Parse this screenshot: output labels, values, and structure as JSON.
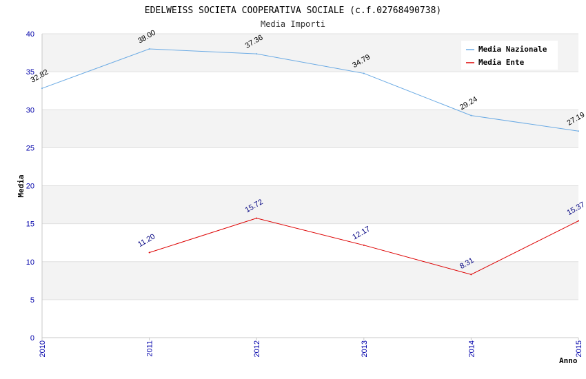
{
  "chart_data": {
    "type": "line",
    "title": "EDELWEISS SOCIETA COOPERATIVA SOCIALE (c.f.02768490738)",
    "subtitle": "Media Importi",
    "xlabel": "Anno",
    "ylabel": "Media",
    "x": [
      "2010",
      "2011",
      "2012",
      "2013",
      "2014",
      "2015"
    ],
    "ylim": [
      0,
      40
    ],
    "yticks": [
      "0",
      "5",
      "10",
      "15",
      "20",
      "25",
      "30",
      "35",
      "40"
    ],
    "grid": true,
    "legend_position": "top-right",
    "series": [
      {
        "name": "Media Nazionale",
        "color": "#6aaae4",
        "label_color": "#000000",
        "values": [
          32.82,
          38.0,
          37.36,
          34.79,
          29.24,
          27.19
        ],
        "labels": [
          "32.82",
          "38.00",
          "37.36",
          "34.79",
          "29.24",
          "27.19"
        ]
      },
      {
        "name": "Media Ente",
        "color": "#dd0000",
        "label_color": "#000080",
        "values": [
          null,
          11.2,
          15.72,
          12.17,
          8.31,
          15.37
        ],
        "labels": [
          null,
          "11.20",
          "15.72",
          "12.17",
          "8.31",
          "15.37"
        ]
      }
    ]
  }
}
